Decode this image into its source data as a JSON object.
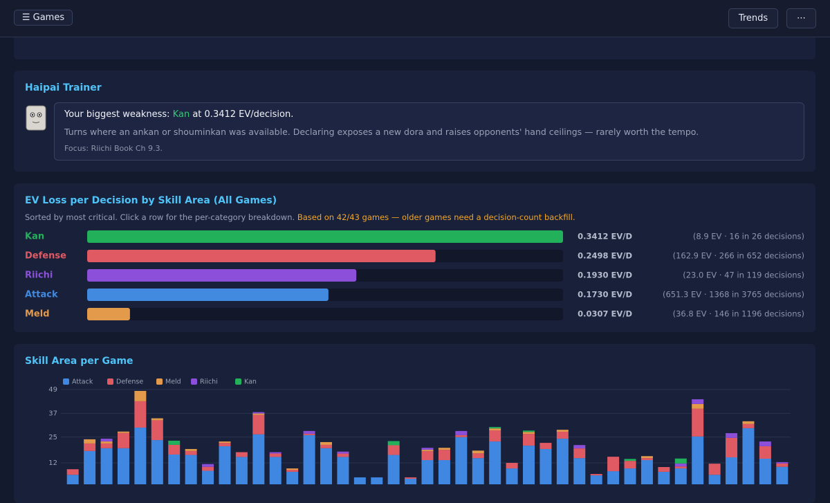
{
  "header": {
    "menu": "☰ Games",
    "trends": "Trends",
    "more": "⋯"
  },
  "trainer": {
    "title": "Haipai Trainer",
    "weakness_prefix": "Your biggest weakness:",
    "weakness_category": "Kan",
    "weakness_suffix": "at 0.3412 EV/decision.",
    "description": "Turns where an ankan or shouminkan was available. Declaring exposes a new dora and raises opponents' hand ceilings — rarely worth the tempo.",
    "focus": "Focus: Riichi Book Ch 9.3."
  },
  "ev_card": {
    "title": "EV Loss per Decision by Skill Area (All Games)",
    "subtitle": "Sorted by most critical. Click a row for the per-category breakdown.",
    "note": "Based on 42/43 games — older games need a decision-count backfill."
  },
  "skill_card": {
    "title": "Skill Area per Game"
  },
  "chart_data": [
    {
      "type": "hbar",
      "categories": [
        "Kan",
        "Defense",
        "Riichi",
        "Attack",
        "Meld"
      ],
      "values": [
        0.3412,
        0.2498,
        0.193,
        0.173,
        0.0307
      ],
      "value_labels": [
        "0.3412 EV/D",
        "0.2498 EV/D",
        "0.1930 EV/D",
        "0.1730 EV/D",
        "0.0307 EV/D"
      ],
      "details": [
        "(8.9 EV · 16 in 26 decisions)",
        "(162.9 EV · 266 in 652 decisions)",
        "(23.0 EV · 47 in 119 decisions)",
        "(651.3 EV · 1368 in 3765 decisions)",
        "(36.8 EV · 146 in 1196 decisions)"
      ],
      "colors": [
        "#22b05a",
        "#e05a64",
        "#8b4fd9",
        "#4289e0",
        "#e39a4a"
      ],
      "xlim": [
        0,
        0.3412
      ]
    },
    {
      "type": "stacked_bar",
      "ylim": [
        0,
        49
      ],
      "yticks": [
        12,
        25,
        37,
        49
      ],
      "grid": true,
      "series": [
        {
          "name": "Attack",
          "color": "#3f87e0",
          "values": [
            6,
            18,
            19.4,
            19.4,
            29.8,
            23.5,
            16.2,
            16,
            8,
            20.4,
            15,
            26.4,
            15,
            7.5,
            26,
            19.4,
            15,
            4.7,
            4.7,
            16,
            4,
            13.4,
            13.4,
            25,
            14.4,
            22.8,
            9.2,
            20.7,
            19,
            24.2,
            14.4,
            5.7,
            7.8,
            9.2,
            13.4,
            7.5,
            9.2,
            25.3,
            6,
            14.8,
            29.5,
            14.1,
            10
          ]
        },
        {
          "name": "Defense",
          "color": "#e05a64",
          "values": [
            2.8,
            3.8,
            2.4,
            7.7,
            13.3,
            10,
            4.9,
            2,
            2,
            1.7,
            2.4,
            9.8,
            1.7,
            1,
            0.7,
            1.7,
            1.7,
            0,
            0,
            4.9,
            0.7,
            4.5,
            5.2,
            1,
            2.4,
            5.6,
            2.8,
            5.9,
            3.1,
            3.5,
            4.9,
            0.7,
            7.3,
            3.8,
            1,
            2.4,
            1,
            14,
            5.6,
            9.8,
            2.1,
            6.3,
            1.7
          ]
        },
        {
          "name": "Meld",
          "color": "#e39a4a",
          "values": [
            0,
            2.1,
            1,
            0.7,
            5.2,
            1,
            0,
            1,
            0,
            0.7,
            0,
            0.7,
            0,
            0.7,
            0,
            1.4,
            0,
            0,
            0,
            0,
            0,
            0.7,
            1,
            0,
            1.4,
            1,
            0,
            1,
            0,
            1,
            0,
            0,
            0,
            0,
            1,
            0,
            0,
            2.4,
            0,
            0,
            1.4,
            0,
            0
          ]
        },
        {
          "name": "Riichi",
          "color": "#8b4fd9",
          "values": [
            0,
            0,
            1.4,
            0,
            0,
            0,
            0,
            0,
            1.4,
            0,
            0,
            0.7,
            0.7,
            0,
            1.4,
            0,
            1,
            0,
            0,
            0,
            0,
            1,
            0,
            2.1,
            0,
            0,
            0,
            0,
            0,
            0,
            1.7,
            0,
            0,
            0,
            0,
            0,
            1.5,
            2.4,
            0,
            2.4,
            0,
            2.4,
            0.7
          ]
        },
        {
          "name": "Kan",
          "color": "#22b05a",
          "values": [
            0,
            0,
            0,
            0,
            0,
            0,
            2.1,
            0,
            0,
            0,
            0,
            0,
            0,
            0,
            0,
            0,
            0,
            0,
            0,
            2.1,
            0,
            0,
            0,
            0,
            0,
            0.7,
            0,
            0.7,
            0,
            0,
            0,
            0,
            0,
            1,
            0,
            0,
            2.5,
            0,
            0,
            0,
            0,
            0,
            0
          ]
        }
      ]
    }
  ]
}
